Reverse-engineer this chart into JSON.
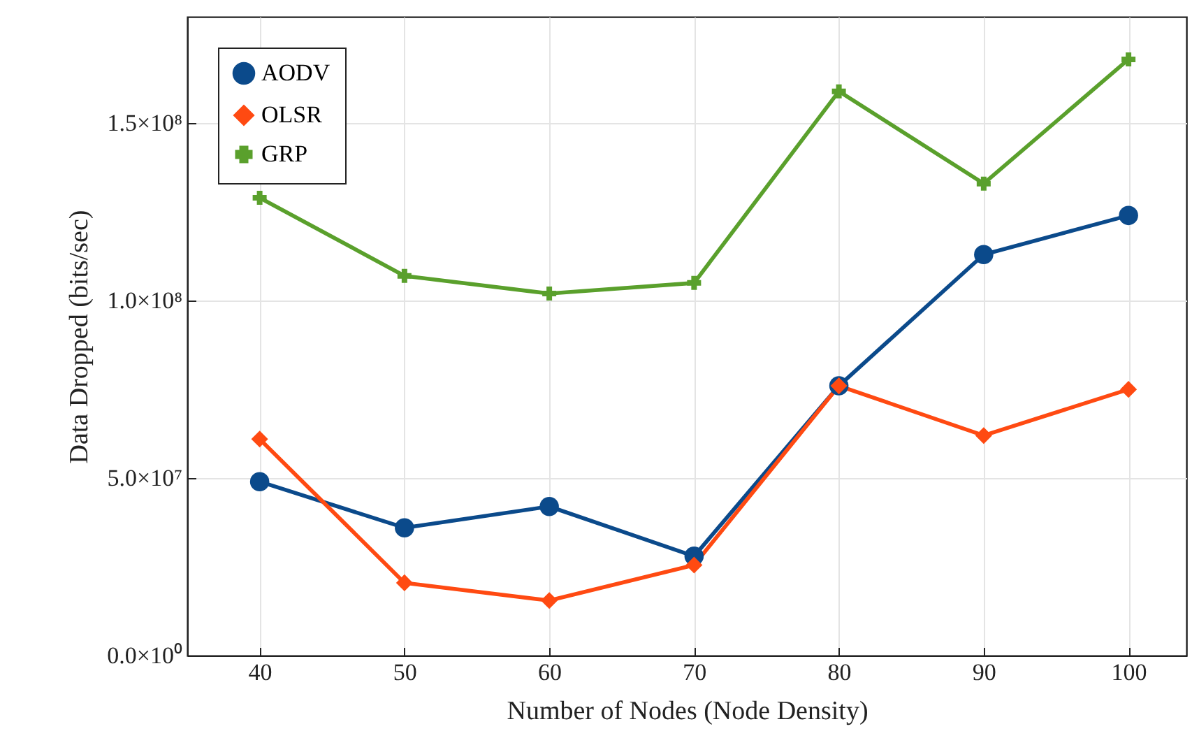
{
  "chart_data": {
    "type": "line",
    "xlabel": "Number of Nodes (Node Density)",
    "ylabel": "Data Dropped (bits/sec)",
    "x": [
      40,
      50,
      60,
      70,
      80,
      90,
      100
    ],
    "series": [
      {
        "name": "AODV",
        "color": "#0b4a8b",
        "marker": "circle",
        "values": [
          49000000,
          36000000,
          42000000,
          28000000,
          76000000,
          113000000,
          124000000
        ]
      },
      {
        "name": "OLSR",
        "color": "#ff4a12",
        "marker": "diamond",
        "values": [
          61000000,
          20500000,
          15500000,
          25500000,
          76000000,
          62000000,
          75000000
        ]
      },
      {
        "name": "GRP",
        "color": "#5aa02c",
        "marker": "cross",
        "values": [
          129000000,
          107000000,
          102000000,
          105000000,
          159000000,
          133000000,
          168000000
        ]
      }
    ],
    "xlim": [
      35,
      104
    ],
    "xticks": [
      40,
      50,
      60,
      70,
      80,
      90,
      100
    ],
    "ylim": [
      0,
      180000000
    ],
    "yticks": [
      {
        "value": 0,
        "label": "0.0×10⁰"
      },
      {
        "value": 50000000,
        "label": "5.0×10⁷"
      },
      {
        "value": 100000000,
        "label": "1.0×10⁸"
      },
      {
        "value": 150000000,
        "label": "1.5×10⁸"
      }
    ],
    "grid": true,
    "legend": "top left",
    "line_style": "solid"
  }
}
